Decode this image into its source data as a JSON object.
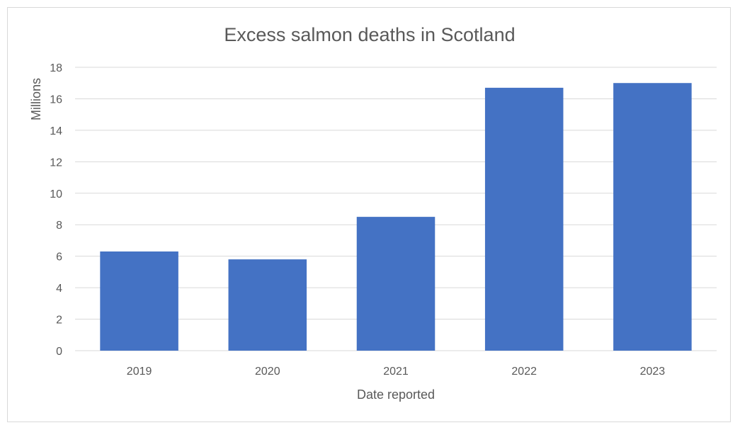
{
  "chart_data": {
    "type": "bar",
    "title": "Excess salmon deaths in Scotland",
    "xlabel": "Date reported",
    "ylabel": "Millions",
    "categories": [
      "2019",
      "2020",
      "2021",
      "2022",
      "2023"
    ],
    "values": [
      6.3,
      5.8,
      8.5,
      16.7,
      17.0
    ],
    "ylim": [
      0,
      18
    ],
    "yticks": [
      "0",
      "2",
      "4",
      "6",
      "8",
      "10",
      "12",
      "14",
      "16",
      "18"
    ],
    "grid": true,
    "legend": "none",
    "bar_color": "#4472c4",
    "grid_color": "#d9d9d9"
  }
}
